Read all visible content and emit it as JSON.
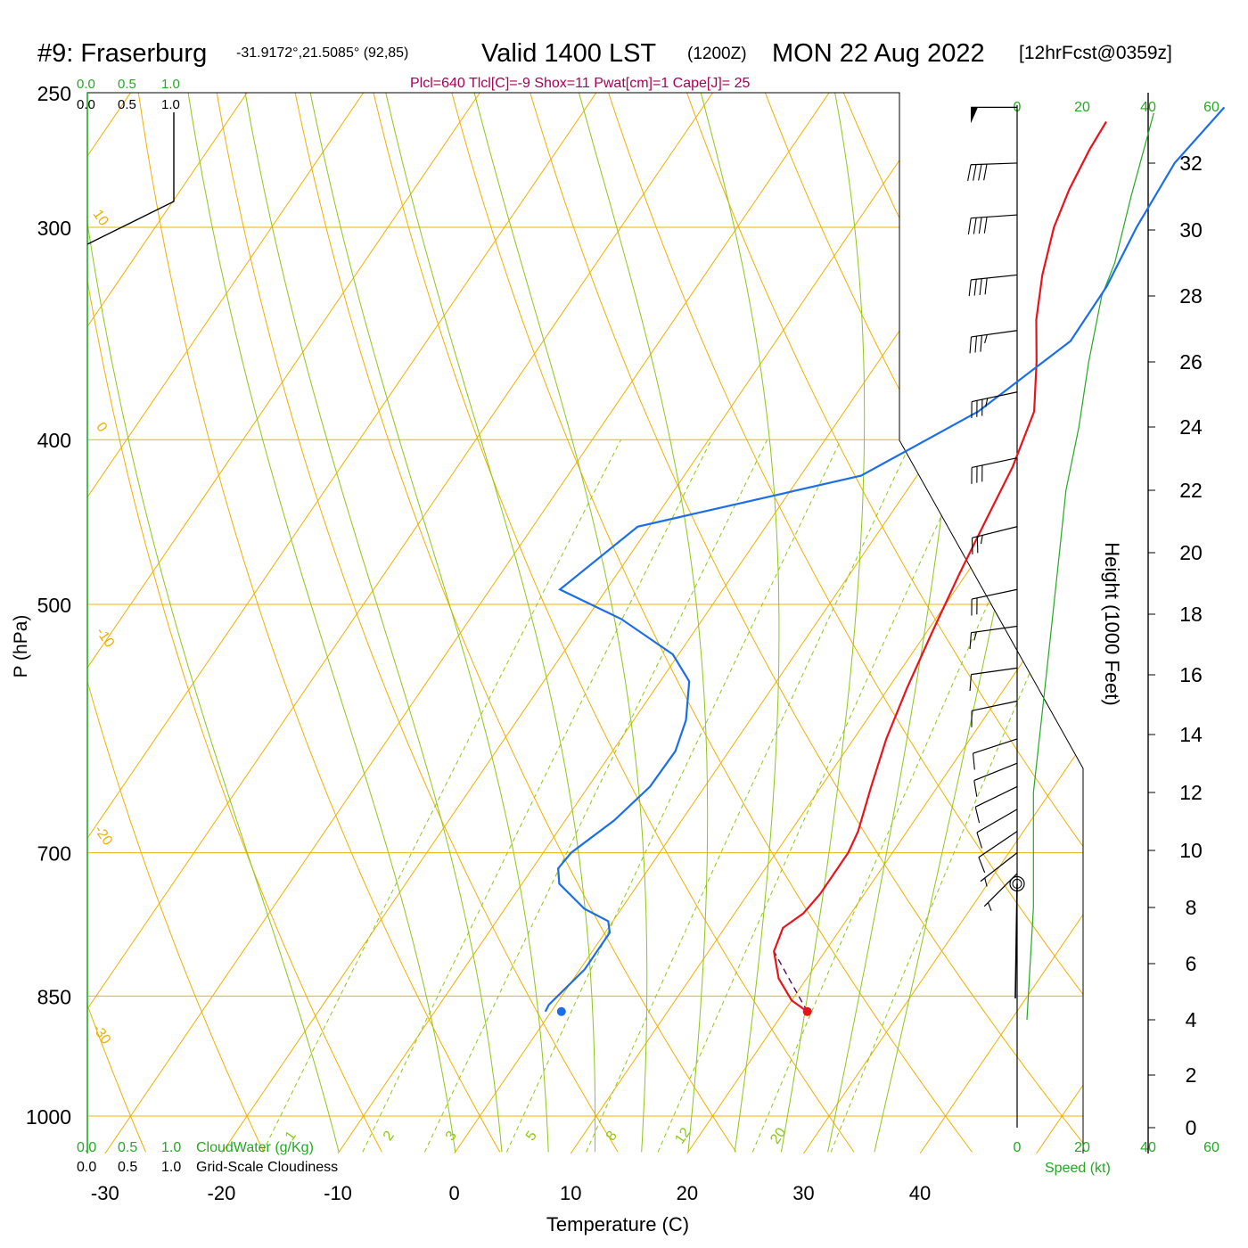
{
  "header": {
    "station": "#9: Fraserburg",
    "coords": "-31.9172°,21.5085° (92,85)",
    "valid": "Valid 1400 LST",
    "utc": "(1200Z)",
    "date": "MON 22 Aug 2022",
    "forecast": "[12hrFcst@0359z]",
    "params": "Plcl=640 Tlcl[C]=-9 Shox=11 Pwat[cm]=1 Cape[J]= 25"
  },
  "labels": {
    "xlabel": "Temperature (C)",
    "ylabel": "P (hPa)",
    "height_label": "Height (1000 Feet)",
    "speed_label": "Speed (kt)",
    "cloudwater_label": "CloudWater (g/Kg)",
    "cloudiness_label": "Grid-Scale Cloudiness"
  },
  "cloud_scale": {
    "green_ticks": [
      "0.0",
      "0.5",
      "1.0"
    ],
    "black_ticks": [
      "0.0",
      "0.5",
      "1.0"
    ]
  },
  "colors": {
    "temperature": "#e8141a",
    "dewpoint": "#1a6fe8",
    "isotherm": "#f0b000",
    "dry_adiabat": "#f0b000",
    "moist_adiabat": "#8cc814",
    "mixing_ratio": "#8cc814",
    "scale_green": "#22aa22",
    "params": "#aa0055"
  },
  "chart_data": {
    "type": "skew-t",
    "x_ticks": [
      "-30",
      "-20",
      "-10",
      "0",
      "10",
      "20",
      "30",
      "40"
    ],
    "pressure_levels": [
      "250",
      "300",
      "400",
      "500",
      "700",
      "850",
      "1000"
    ],
    "height_ticks": [
      "0",
      "2",
      "4",
      "6",
      "8",
      "10",
      "12",
      "14",
      "16",
      "18",
      "20",
      "22",
      "24",
      "26",
      "28",
      "30",
      "32"
    ],
    "speed_ticks_top": [
      "0",
      "20",
      "40",
      "60"
    ],
    "speed_ticks_bottom": [
      "0",
      "20",
      "40",
      "60"
    ],
    "isotherm_labels": [
      "10",
      "0",
      "-10",
      "-20",
      "-30",
      "0",
      "10",
      "20",
      "30"
    ],
    "mixing_ratio_labels": [
      "1",
      "2",
      "3",
      "5",
      "8",
      "12",
      "20"
    ],
    "temperature_profile": [
      {
        "p": 868,
        "t": 22.0
      },
      {
        "p": 855,
        "t": 20.0
      },
      {
        "p": 830,
        "t": 17.6
      },
      {
        "p": 800,
        "t": 15.6
      },
      {
        "p": 775,
        "t": 15.0
      },
      {
        "p": 760,
        "t": 15.9
      },
      {
        "p": 740,
        "t": 16.2
      },
      {
        "p": 700,
        "t": 16.2
      },
      {
        "p": 680,
        "t": 15.8
      },
      {
        "p": 640,
        "t": 14.3
      },
      {
        "p": 600,
        "t": 12.8
      },
      {
        "p": 560,
        "t": 11.6
      },
      {
        "p": 520,
        "t": 10.5
      },
      {
        "p": 480,
        "t": 9.4
      },
      {
        "p": 445,
        "t": 8.5
      },
      {
        "p": 415,
        "t": 7.7
      },
      {
        "p": 385,
        "t": 6.3
      },
      {
        "p": 360,
        "t": 3.6
      },
      {
        "p": 340,
        "t": 1.1
      },
      {
        "p": 320,
        "t": -1.0
      },
      {
        "p": 300,
        "t": -2.8
      },
      {
        "p": 285,
        "t": -3.7
      },
      {
        "p": 270,
        "t": -4.3
      },
      {
        "p": 260,
        "t": -4.5
      }
    ],
    "dewpoint_profile": [
      {
        "p": 868,
        "t": -0.5
      },
      {
        "p": 860,
        "t": -0.6
      },
      {
        "p": 820,
        "t": 0.4
      },
      {
        "p": 780,
        "t": 0.4
      },
      {
        "p": 768,
        "t": -0.4
      },
      {
        "p": 755,
        "t": -3.2
      },
      {
        "p": 730,
        "t": -6.8
      },
      {
        "p": 715,
        "t": -7.8
      },
      {
        "p": 700,
        "t": -7.6
      },
      {
        "p": 670,
        "t": -5.8
      },
      {
        "p": 640,
        "t": -4.7
      },
      {
        "p": 610,
        "t": -4.6
      },
      {
        "p": 585,
        "t": -5.5
      },
      {
        "p": 555,
        "t": -7.5
      },
      {
        "p": 535,
        "t": -10.5
      },
      {
        "p": 510,
        "t": -17.0
      },
      {
        "p": 490,
        "t": -24.0
      },
      {
        "p": 450,
        "t": -21.0
      },
      {
        "p": 420,
        "t": -4.8
      },
      {
        "p": 385,
        "t": 1.5
      },
      {
        "p": 350,
        "t": 5.3
      },
      {
        "p": 325,
        "t": 5.2
      },
      {
        "p": 300,
        "t": 4.3
      },
      {
        "p": 275,
        "t": 3.8
      },
      {
        "p": 255,
        "t": 4.8
      }
    ],
    "parcel_path": [
      {
        "p": 868,
        "t": 22.0
      },
      {
        "p": 800,
        "t": 15.6
      }
    ],
    "surface": {
      "p": 868,
      "t": 22.0,
      "td": -0.5
    },
    "wind_speed_profile": [
      {
        "height_kft": 4.0,
        "speed_kt": 3
      },
      {
        "height_kft": 8.0,
        "speed_kt": 5
      },
      {
        "height_kft": 12.0,
        "speed_kt": 5
      },
      {
        "height_kft": 16.0,
        "speed_kt": 9
      },
      {
        "height_kft": 20.0,
        "speed_kt": 13
      },
      {
        "height_kft": 22.0,
        "speed_kt": 15
      },
      {
        "height_kft": 24.0,
        "speed_kt": 19
      },
      {
        "height_kft": 26.0,
        "speed_kt": 22
      },
      {
        "height_kft": 28.0,
        "speed_kt": 26
      },
      {
        "height_kft": 29.0,
        "speed_kt": 30
      },
      {
        "height_kft": 31.0,
        "speed_kt": 35
      },
      {
        "height_kft": 33.5,
        "speed_kt": 42
      }
    ],
    "wind_barbs": [
      {
        "p": 255,
        "dir": 270,
        "kt": 50
      },
      {
        "p": 275,
        "dir": 268,
        "kt": 40
      },
      {
        "p": 295,
        "dir": 266,
        "kt": 40
      },
      {
        "p": 320,
        "dir": 264,
        "kt": 40
      },
      {
        "p": 345,
        "dir": 262,
        "kt": 35
      },
      {
        "p": 375,
        "dir": 258,
        "kt": 35
      },
      {
        "p": 410,
        "dir": 258,
        "kt": 30
      },
      {
        "p": 450,
        "dir": 256,
        "kt": 25
      },
      {
        "p": 490,
        "dir": 258,
        "kt": 20
      },
      {
        "p": 515,
        "dir": 262,
        "kt": 15
      },
      {
        "p": 545,
        "dir": 262,
        "kt": 10
      },
      {
        "p": 570,
        "dir": 258,
        "kt": 10
      },
      {
        "p": 600,
        "dir": 252,
        "kt": 10
      },
      {
        "p": 620,
        "dir": 248,
        "kt": 10
      },
      {
        "p": 640,
        "dir": 244,
        "kt": 10
      },
      {
        "p": 660,
        "dir": 240,
        "kt": 10
      },
      {
        "p": 680,
        "dir": 236,
        "kt": 10
      },
      {
        "p": 700,
        "dir": 232,
        "kt": 5
      },
      {
        "p": 720,
        "dir": 225,
        "kt": 5
      }
    ],
    "calm_marker_p": 730
  }
}
